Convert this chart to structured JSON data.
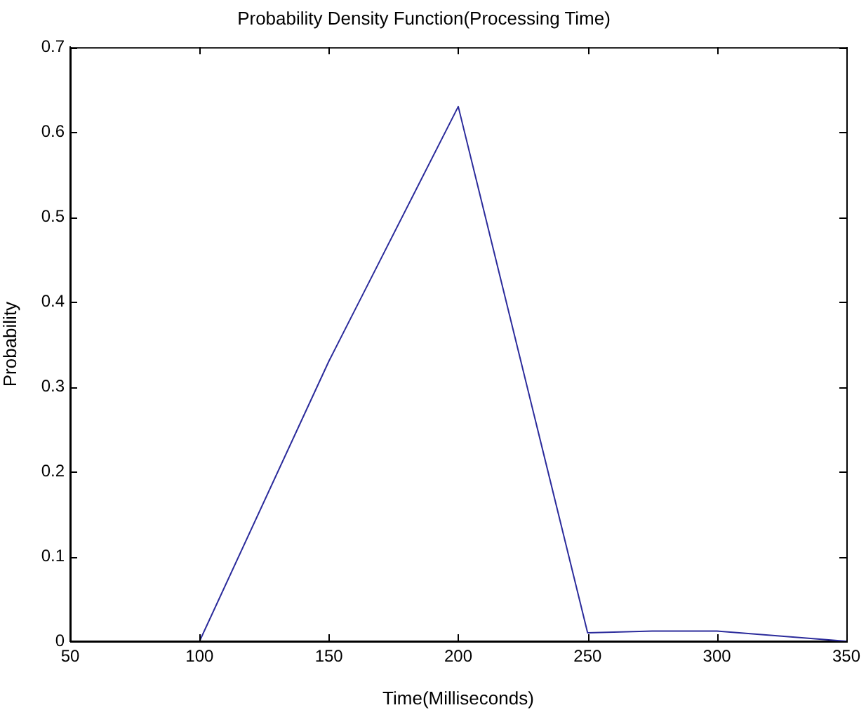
{
  "chart_data": {
    "type": "line",
    "title": "Probability Density Function(Processing Time)",
    "xlabel": "Time(Milliseconds)",
    "ylabel": "Probability",
    "x": [
      100,
      150,
      200,
      250,
      275,
      300,
      325,
      350
    ],
    "series": [
      {
        "color": "#2b2b9b",
        "values": [
          0,
          0.33,
          0.63,
          0.01,
          0.012,
          0.012,
          0.006,
          0
        ]
      }
    ],
    "xlim": [
      50,
      350
    ],
    "xticks": [
      50,
      100,
      150,
      200,
      250,
      300,
      350
    ],
    "ylim": [
      0,
      0.7
    ],
    "yticks": [
      0,
      0.1,
      0.2,
      0.3,
      0.4,
      0.5,
      0.6,
      0.7
    ],
    "grid": false,
    "legend": false,
    "marker": "none",
    "line_style": "solid"
  }
}
